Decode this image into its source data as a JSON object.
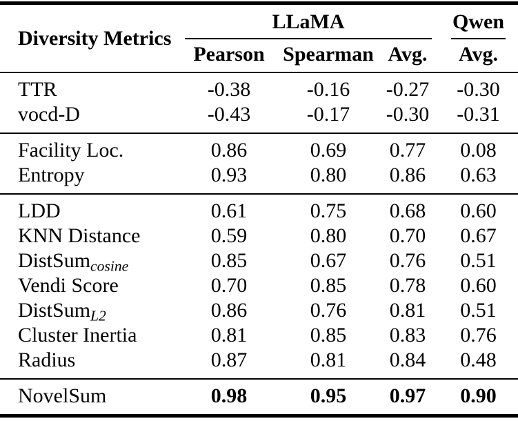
{
  "table": {
    "col1_header": "Diversity Metrics",
    "group_headers": [
      {
        "label": "LLaMA",
        "span": 3
      },
      {
        "label": "Qwen",
        "span": 1
      }
    ],
    "sub_headers": [
      "Pearson",
      "Spearman",
      "Avg.",
      "Avg."
    ],
    "groups": [
      {
        "rows": [
          {
            "metric": "TTR",
            "values": [
              "-0.38",
              "-0.16",
              "-0.27",
              "-0.30"
            ]
          },
          {
            "metric": "vocd-D",
            "values": [
              "-0.43",
              "-0.17",
              "-0.30",
              "-0.31"
            ]
          }
        ]
      },
      {
        "rows": [
          {
            "metric": "Facility Loc.",
            "values": [
              "0.86",
              "0.69",
              "0.77",
              "0.08"
            ]
          },
          {
            "metric": "Entropy",
            "values": [
              "0.93",
              "0.80",
              "0.86",
              "0.63"
            ]
          }
        ]
      },
      {
        "rows": [
          {
            "metric": "LDD",
            "values": [
              "0.61",
              "0.75",
              "0.68",
              "0.60"
            ]
          },
          {
            "metric": "KNN Distance",
            "values": [
              "0.59",
              "0.80",
              "0.70",
              "0.67"
            ]
          },
          {
            "metric": "DistSum",
            "metric_sub": "cosine",
            "values": [
              "0.85",
              "0.67",
              "0.76",
              "0.51"
            ]
          },
          {
            "metric": "Vendi Score",
            "values": [
              "0.70",
              "0.85",
              "0.78",
              "0.60"
            ]
          },
          {
            "metric": "DistSum",
            "metric_sub": "L2",
            "values": [
              "0.86",
              "0.76",
              "0.81",
              "0.51"
            ]
          },
          {
            "metric": "Cluster Inertia",
            "values": [
              "0.81",
              "0.85",
              "0.83",
              "0.76"
            ]
          },
          {
            "metric": "Radius",
            "values": [
              "0.87",
              "0.81",
              "0.84",
              "0.48"
            ]
          }
        ]
      },
      {
        "rows": [
          {
            "metric": "NovelSum",
            "values": [
              "0.98",
              "0.95",
              "0.97",
              "0.90"
            ],
            "bold_values": true
          }
        ]
      }
    ]
  }
}
